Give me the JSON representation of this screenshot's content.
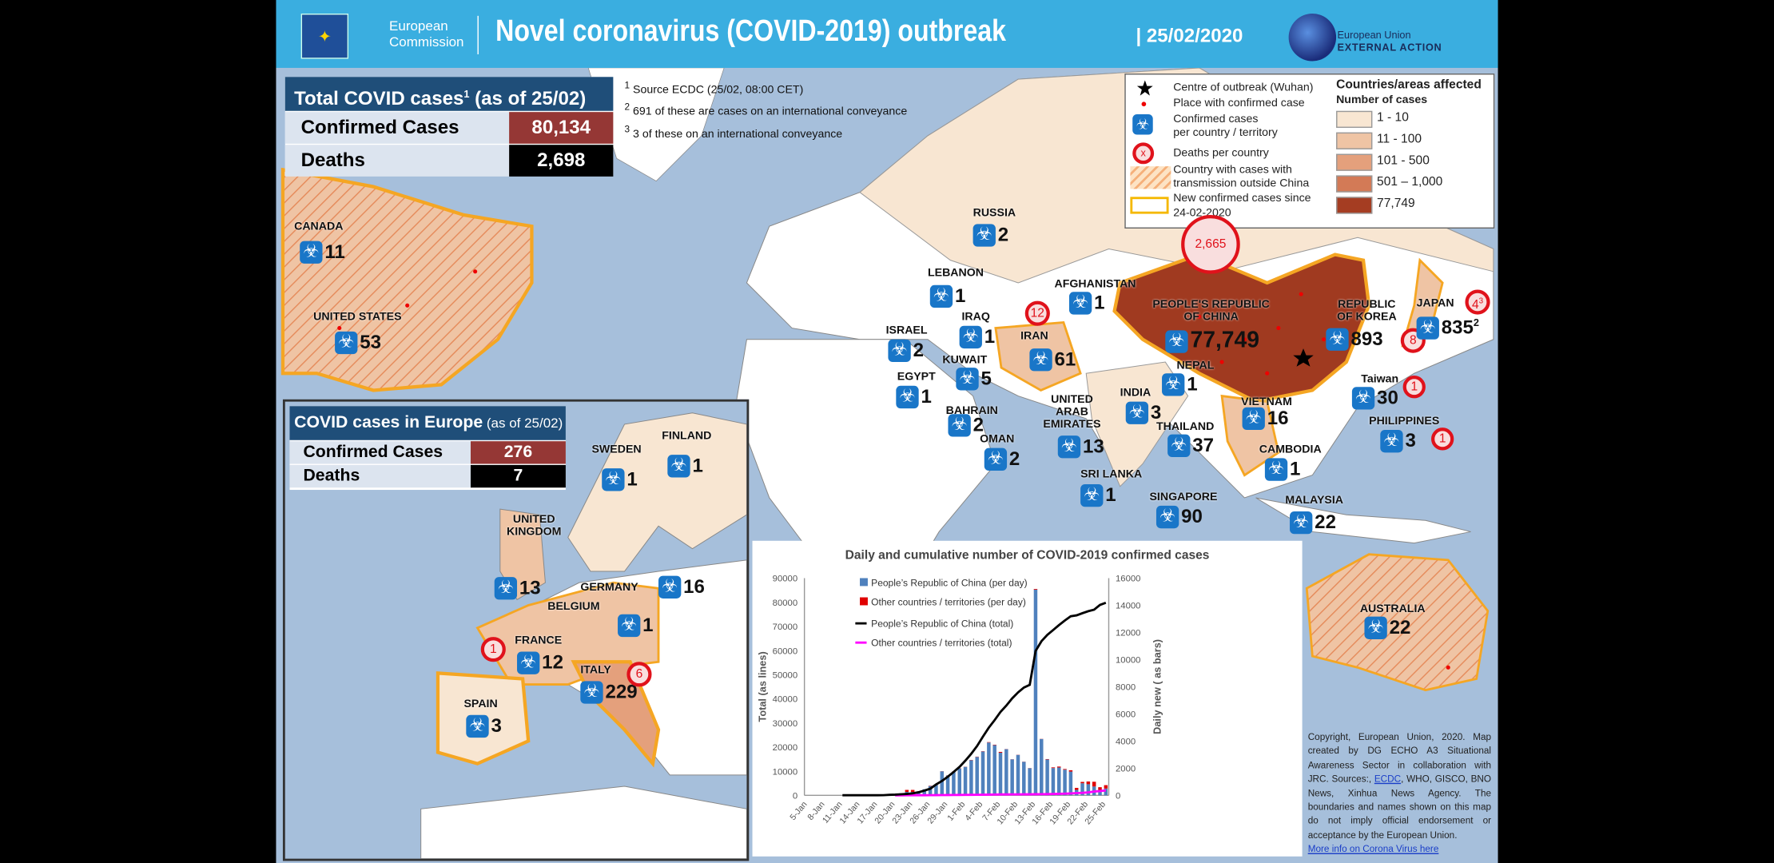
{
  "header": {
    "org": "European Commission",
    "title": "Novel coronavirus (COVID-2019) outbreak",
    "date": "25/02/2020",
    "eeas_line1": "European Union",
    "eeas_line2": "EXTERNAL ACTION"
  },
  "total": {
    "title": "Total COVID cases",
    "title_sup": "1",
    "title_suffix": " (as of 25/02)",
    "confirmed_label": "Confirmed Cases",
    "confirmed": "80,134",
    "deaths_label": "Deaths",
    "deaths": "2,698"
  },
  "notes": [
    {
      "sup": "1",
      "text": " Source ECDC (25/02, 08:00 CET)"
    },
    {
      "sup": "2",
      "text": " 691 of these are cases on an international conveyance"
    },
    {
      "sup": "3",
      "text": " 3 of these on an international conveyance"
    }
  ],
  "legend": {
    "items": [
      "Centre of outbreak (Wuhan)",
      "Place  with confirmed case",
      "Confirmed cases",
      "per country / territory",
      "Deaths per country",
      "Country with cases with",
      "transmission outside China",
      "New confirmed cases since",
      "24-02-2020"
    ],
    "death_symbol": "x",
    "title": "Countries/areas affected",
    "subtitle": "Number of cases",
    "classes": [
      {
        "label": "1 - 10",
        "color": "#f8e6d2"
      },
      {
        "label": "11 - 100",
        "color": "#efc4a4"
      },
      {
        "label": "101 - 500",
        "color": "#e4a07c"
      },
      {
        "label": "501 – 1,000",
        "color": "#d37a56"
      },
      {
        "label": "77,749",
        "color": "#a53d22"
      }
    ]
  },
  "colors": {
    "header": "#3aaee0",
    "navy": "#1f4e79",
    "confirmed": "#953735",
    "deaths": "#000000",
    "china": "#a03a20",
    "icon": "#1976c8",
    "death_ring": "#e0121b",
    "ocean": "#a6bfdb"
  },
  "countries": [
    {
      "name": "CANADA",
      "cases": "11"
    },
    {
      "name": "UNITED STATES",
      "cases": "53"
    },
    {
      "name": "RUSSIA",
      "cases": "2"
    },
    {
      "name": "LEBANON",
      "cases": "1"
    },
    {
      "name": "AFGHANISTAN",
      "cases": "1"
    },
    {
      "name": "IRAQ",
      "cases": "1"
    },
    {
      "name": "ISRAEL",
      "cases": "2"
    },
    {
      "name": "IRAN",
      "cases": "61",
      "deaths": "12"
    },
    {
      "name": "KUWAIT",
      "cases": "5"
    },
    {
      "name": "EGYPT",
      "cases": "1"
    },
    {
      "name": "BAHRAIN",
      "cases": "2"
    },
    {
      "name": "OMAN",
      "cases": "2"
    },
    {
      "name": "UNITED ARAB EMIRATES",
      "cases": "13"
    },
    {
      "name": "INDIA",
      "cases": "3"
    },
    {
      "name": "NEPAL",
      "cases": "1"
    },
    {
      "name": "THAILAND",
      "cases": "37"
    },
    {
      "name": "SRI LANKA",
      "cases": "1"
    },
    {
      "name": "SINGAPORE",
      "cases": "90"
    },
    {
      "name": "CAMBODIA",
      "cases": "1"
    },
    {
      "name": "MALAYSIA",
      "cases": "22"
    },
    {
      "name": "VIETNAM",
      "cases": "16"
    },
    {
      "name": "PEOPLE'S REPUBLIC OF CHINA",
      "cases": "77,749",
      "deaths": "2,665"
    },
    {
      "name": "REPUBLIC OF KOREA",
      "cases": "893",
      "deaths": "8"
    },
    {
      "name": "JAPAN",
      "cases": "835",
      "cases_sup": "2",
      "deaths": "4",
      "deaths_sup": "3"
    },
    {
      "name": "Taiwan",
      "cases": "30",
      "deaths": "1"
    },
    {
      "name": "PHILIPPINES",
      "cases": "3",
      "deaths": "1"
    },
    {
      "name": "AUSTRALIA",
      "cases": "22"
    }
  ],
  "europe": {
    "title": "COVID cases in Europe",
    "title_suffix": " (as of 25/02)",
    "confirmed_label": "Confirmed Cases",
    "confirmed": "276",
    "deaths_label": "Deaths",
    "deaths": "7",
    "countries": [
      {
        "name": "SWEDEN",
        "cases": "1"
      },
      {
        "name": "FINLAND",
        "cases": "1"
      },
      {
        "name": "UNITED KINGDOM",
        "cases": "13"
      },
      {
        "name": "GERMANY",
        "cases": "16"
      },
      {
        "name": "BELGIUM",
        "cases": "1"
      },
      {
        "name": "FRANCE",
        "cases": "12",
        "deaths": "1"
      },
      {
        "name": "ITALY",
        "cases": "229",
        "deaths": "6"
      },
      {
        "name": "SPAIN",
        "cases": "3"
      }
    ]
  },
  "copyright": {
    "text1": "Copyright, European Union, 2020. Map created by DG ECHO A3 Situational Awareness Sector in collaboration with JRC.  Sources:, ",
    "link1": "ECDC",
    "text2": ", WHO, GISCO, BNO News, Xinhua News Agency. The boundaries and names shown on this map do not imply official endorsement or acceptance by the European Union.",
    "link2": "More info on Corona Virus here"
  },
  "chart_data": {
    "type": "bar+line",
    "title": "Daily and cumulative number of COVID-2019  confirmed cases",
    "ylabel_left": "Total (as lines)",
    "ylabel_right": "Daily new ( as bars)",
    "ylim_left": [
      0,
      90000
    ],
    "ylim_right": [
      0,
      16000
    ],
    "yticks_left": [
      "0",
      "10000",
      "20000",
      "30000",
      "40000",
      "50000",
      "60000",
      "70000",
      "80000",
      "90000"
    ],
    "yticks_right": [
      "0",
      "2000",
      "4000",
      "6000",
      "8000",
      "10000",
      "12000",
      "14000",
      "16000"
    ],
    "x_tick_labels": [
      "5-Jan",
      "8-Jan",
      "11-Jan",
      "14-Jan",
      "17-Jan",
      "20-Jan",
      "23-Jan",
      "26-Jan",
      "29-Jan",
      "1-Feb",
      "4-Feb",
      "7-Feb",
      "10-Feb",
      "13-Feb",
      "16-Feb",
      "19-Feb",
      "22-Feb",
      "25-Feb"
    ],
    "x_tick_every": 3,
    "legend": [
      "People’s Republic of China (per day)",
      "Other countries / territories (per day)",
      "People’s Republic of China (total)",
      "Other countries / territories (total)"
    ],
    "series_colors": [
      "#4f81bd",
      "#e00000",
      "#000000",
      "#ff00ff"
    ],
    "china_daily": [
      0,
      0,
      0,
      0,
      0,
      0,
      0,
      0,
      0,
      0,
      0,
      0,
      0,
      0,
      0,
      100,
      150,
      250,
      250,
      250,
      450,
      690,
      770,
      1770,
      1460,
      1740,
      1980,
      2100,
      2590,
      2830,
      3230,
      3890,
      3700,
      3140,
      3400,
      2650,
      2980,
      2470,
      2000,
      15150,
      4150,
      2640,
      2010,
      2050,
      1890,
      1750,
      400,
      890,
      820,
      650,
      400,
      500
    ],
    "other_daily": [
      0,
      0,
      0,
      0,
      0,
      0,
      0,
      0,
      0,
      0,
      0,
      0,
      0,
      0,
      0,
      0,
      0,
      150,
      150,
      0,
      0,
      20,
      20,
      10,
      10,
      20,
      20,
      10,
      20,
      20,
      20,
      30,
      30,
      60,
      10,
      10,
      10,
      10,
      10,
      50,
      10,
      30,
      50,
      70,
      50,
      100,
      150,
      100,
      200,
      350,
      200,
      250
    ],
    "china_total": [
      null,
      null,
      null,
      null,
      null,
      null,
      41,
      41,
      41,
      41,
      41,
      41,
      45,
      62,
      198,
      291,
      440,
      571,
      830,
      1287,
      1975,
      2744,
      4515,
      5974,
      7711,
      9692,
      11791,
      14380,
      17205,
      20438,
      24324,
      28018,
      31161,
      34546,
      37198,
      40171,
      42638,
      44653,
      45800,
      59804,
      63851,
      66492,
      68500,
      70548,
      72436,
      74185,
      74576,
      75465,
      76288,
      76936,
      78900,
      79800
    ],
    "other_total": [
      null,
      null,
      null,
      null,
      null,
      null,
      null,
      null,
      null,
      null,
      null,
      null,
      null,
      null,
      null,
      10,
      15,
      20,
      30,
      40,
      55,
      70,
      90,
      110,
      130,
      150,
      170,
      190,
      210,
      230,
      250,
      280,
      310,
      370,
      380,
      390,
      400,
      410,
      420,
      470,
      480,
      510,
      560,
      630,
      680,
      780,
      930,
      1030,
      1230,
      1580,
      1780,
      2030
    ]
  }
}
